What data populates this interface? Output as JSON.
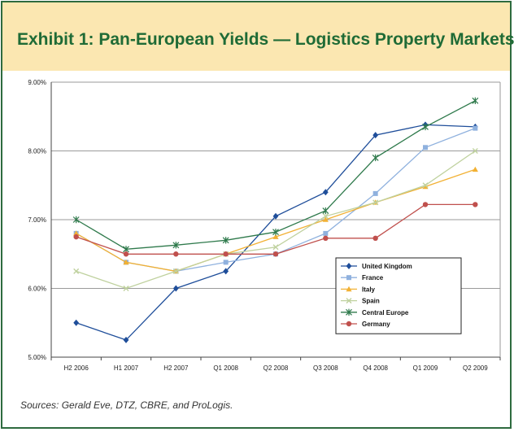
{
  "header": {
    "title": "Exhibit 1: Pan-European Yields — Logistics Property Markets"
  },
  "footer": {
    "source": "Sources: Gerald Eve, DTZ, CBRE, and ProLogis."
  },
  "colors": {
    "border": "#2e6b3f",
    "title_band": "#fbe7b1",
    "title_text": "#1f6b36"
  },
  "chart_data": {
    "type": "line",
    "categories": [
      "H2 2006",
      "H1 2007",
      "H2 2007",
      "Q1 2008",
      "Q2 2008",
      "Q3 2008",
      "Q4 2008",
      "Q1 2009",
      "Q2 2009"
    ],
    "y_ticks": [
      "5.00%",
      "6.00%",
      "7.00%",
      "8.00%",
      "9.00%"
    ],
    "ylim": [
      5.0,
      9.0
    ],
    "grid": true,
    "legend_position": "right",
    "series": [
      {
        "name": "United Kingdom",
        "color": "#1f4e9a",
        "marker": "diamond",
        "values": [
          5.5,
          5.25,
          6.0,
          6.25,
          7.05,
          7.4,
          8.23,
          8.38,
          8.35
        ]
      },
      {
        "name": "France",
        "color": "#8fb1de",
        "marker": "square",
        "values": [
          6.8,
          6.38,
          6.25,
          6.38,
          6.5,
          6.8,
          7.38,
          8.05,
          8.33
        ]
      },
      {
        "name": "Italy",
        "color": "#f2b134",
        "marker": "triangle",
        "values": [
          6.8,
          6.38,
          6.25,
          6.5,
          6.75,
          7.0,
          7.25,
          7.48,
          7.73
        ]
      },
      {
        "name": "Spain",
        "color": "#bfd19e",
        "marker": "x",
        "values": [
          6.25,
          6.0,
          6.25,
          6.5,
          6.6,
          7.05,
          7.25,
          7.5,
          8.0
        ]
      },
      {
        "name": "Central Europe",
        "color": "#2f7a4c",
        "marker": "star",
        "values": [
          7.0,
          6.57,
          6.63,
          6.7,
          6.82,
          7.13,
          7.9,
          8.35,
          8.73
        ]
      },
      {
        "name": "Germany",
        "color": "#c0504d",
        "marker": "circle",
        "values": [
          6.75,
          6.5,
          6.5,
          6.5,
          6.5,
          6.73,
          6.73,
          7.22,
          7.22
        ]
      }
    ]
  }
}
